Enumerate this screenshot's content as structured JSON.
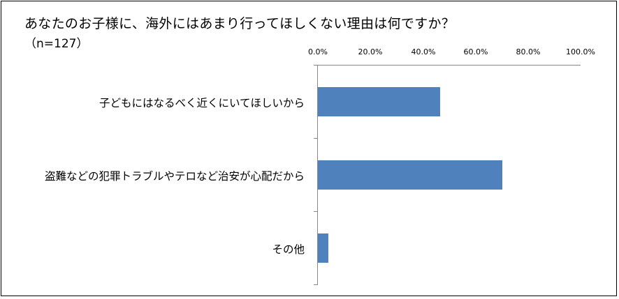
{
  "title": "あなたのお子様に、海外にはあまり行ってほしくない理由は何ですか？",
  "subtitle": "（n=127）",
  "colors": {
    "bar": "#4f81bd",
    "axis": "#868686",
    "border": "#000000"
  },
  "axis": {
    "ticks": [
      "0.0%",
      "20.0%",
      "40.0%",
      "60.0%",
      "80.0%",
      "100.0%"
    ]
  },
  "categories": [
    "子どもにはなるべく近くにいてほしいから",
    "盗難などの犯罪トラブルやテロなど治安が心配だから",
    "その他"
  ],
  "chart_data": {
    "type": "bar",
    "orientation": "horizontal",
    "title": "あなたのお子様に、海外にはあまり行ってほしくない理由は何ですか？",
    "subtitle": "（n=127）",
    "categories": [
      "子どもにはなるべく近くにいてほしいから",
      "盗難などの犯罪トラブルやテロなど治安が心配だから",
      "その他"
    ],
    "values": [
      46.5,
      70.1,
      3.9
    ],
    "unit": "%",
    "xlabel": "",
    "ylabel": "",
    "xlim": [
      0,
      100
    ],
    "xticks": [
      "0.0%",
      "20.0%",
      "40.0%",
      "60.0%",
      "80.0%",
      "100.0%"
    ],
    "axis_position": "top",
    "grid": false,
    "legend": null
  }
}
